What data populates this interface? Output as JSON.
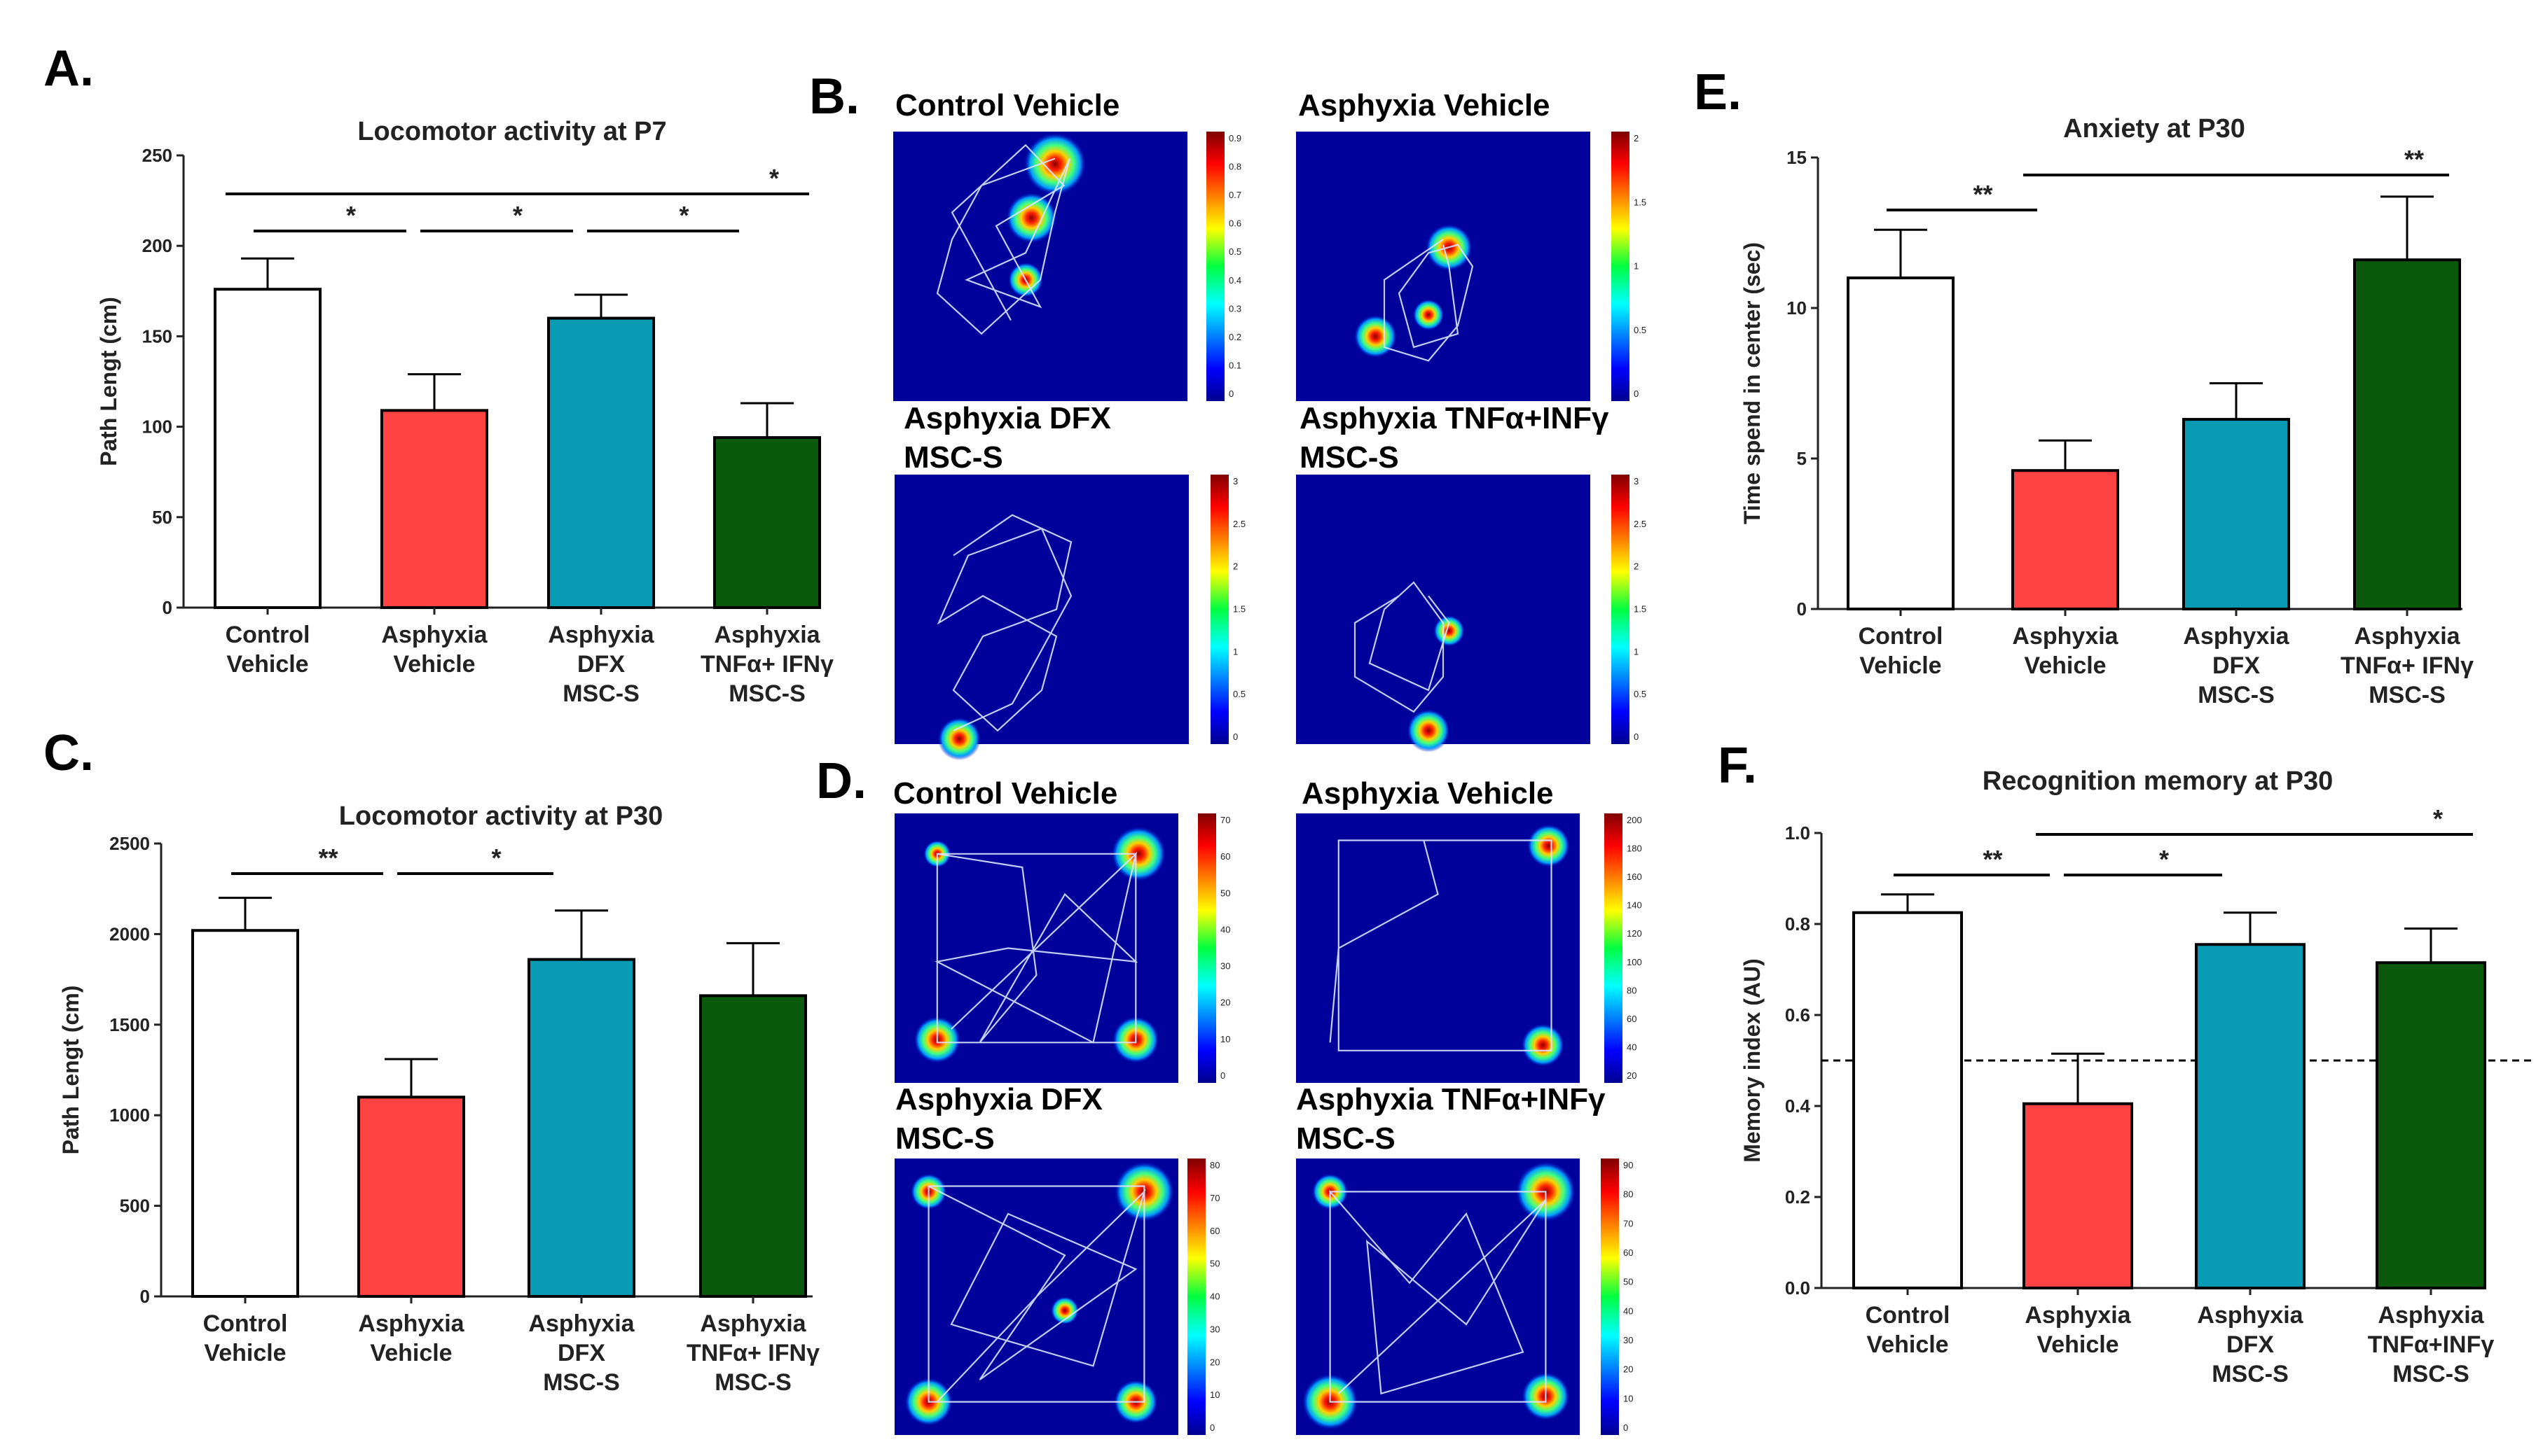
{
  "panel_labels": {
    "A": "A.",
    "B": "B.",
    "C": "C.",
    "D": "D.",
    "E": "E.",
    "F": "F."
  },
  "colors": {
    "control": "#ffffff",
    "asphyxia": "#ff4242",
    "dfx": "#0a9bb4",
    "tnf": "#0b5a0b",
    "axis": "#222222",
    "heat_bg": "#00009a"
  },
  "chart_data": [
    {
      "id": "A",
      "type": "bar",
      "title": "Locomotor activity at P7",
      "ylabel": "Path Lengt (cm)",
      "ylim": [
        0,
        250
      ],
      "yticks": [
        "0",
        "50",
        "100",
        "150",
        "200",
        "250"
      ],
      "categories": [
        [
          "Control",
          "Vehicle"
        ],
        [
          "Asphyxia",
          "Vehicle"
        ],
        [
          "Asphyxia",
          "DFX",
          "MSC-S"
        ],
        [
          "Asphyxia",
          "TNFα+ IFNγ",
          "MSC-S"
        ]
      ],
      "values": [
        176,
        109,
        160,
        94
      ],
      "errors": [
        17,
        20,
        13,
        19
      ],
      "significance": [
        {
          "from": 0,
          "to": 1,
          "label": "*",
          "level": 1
        },
        {
          "from": 1,
          "to": 2,
          "label": "*",
          "level": 1
        },
        {
          "from": 2,
          "to": 3,
          "label": "*",
          "level": 1
        },
        {
          "from": 0,
          "to": 3,
          "label": "*",
          "level": 2
        }
      ]
    },
    {
      "id": "C",
      "type": "bar",
      "title": "Locomotor activity at P30",
      "ylabel": "Path Lengt (cm)",
      "ylim": [
        0,
        2500
      ],
      "yticks": [
        "0",
        "500",
        "1000",
        "1500",
        "2000",
        "2500"
      ],
      "categories": [
        [
          "Control",
          "Vehicle"
        ],
        [
          "Asphyxia",
          "Vehicle"
        ],
        [
          "Asphyxia",
          "DFX",
          "MSC-S"
        ],
        [
          "Asphyxia",
          "TNFα+ IFNγ",
          "MSC-S"
        ]
      ],
      "values": [
        2020,
        1100,
        1860,
        1660
      ],
      "errors": [
        180,
        210,
        270,
        290
      ],
      "significance": [
        {
          "from": 0,
          "to": 1,
          "label": "**",
          "level": 1
        },
        {
          "from": 1,
          "to": 2,
          "label": "*",
          "level": 1
        }
      ]
    },
    {
      "id": "E",
      "type": "bar",
      "title": "Anxiety at P30",
      "ylabel": "Time spend in center (sec)",
      "ylim": [
        0,
        15
      ],
      "yticks": [
        "0",
        "5",
        "10",
        "15"
      ],
      "categories": [
        [
          "Control",
          "Vehicle"
        ],
        [
          "Asphyxia",
          "Vehicle"
        ],
        [
          "Asphyxia",
          "DFX",
          "MSC-S"
        ],
        [
          "Asphyxia",
          "TNFα+ IFNγ",
          "MSC-S"
        ]
      ],
      "values": [
        11.0,
        4.6,
        6.3,
        11.6
      ],
      "errors": [
        1.6,
        1.0,
        1.2,
        2.1
      ],
      "significance": [
        {
          "from": 0,
          "to": 1,
          "label": "**",
          "level": 1
        },
        {
          "from": 1,
          "to": 3,
          "label": "**",
          "level": 2
        }
      ]
    },
    {
      "id": "F",
      "type": "bar",
      "title": "Recognition memory at P30",
      "ylabel": "Memory index (AU)",
      "ylim": [
        0,
        1.0
      ],
      "yticks": [
        "0.0",
        "0.2",
        "0.4",
        "0.6",
        "0.8",
        "1.0"
      ],
      "categories": [
        [
          "Control",
          "Vehicle"
        ],
        [
          "Asphyxia",
          "Vehicle"
        ],
        [
          "Asphyxia",
          "DFX",
          "MSC-S"
        ],
        [
          "Asphyxia",
          "TNFα+INFγ",
          "MSC-S"
        ]
      ],
      "values": [
        0.825,
        0.405,
        0.755,
        0.715
      ],
      "errors": [
        0.04,
        0.11,
        0.07,
        0.075
      ],
      "reference_line": 0.5,
      "significance": [
        {
          "from": 0,
          "to": 1,
          "label": "**",
          "level": 1
        },
        {
          "from": 1,
          "to": 2,
          "label": "*",
          "level": 1
        },
        {
          "from": 1,
          "to": 3,
          "label": "*",
          "level": 2
        }
      ]
    }
  ],
  "heatmaps": {
    "B": [
      {
        "title": [
          "Control Vehicle"
        ],
        "colorbar": [
          "0.9",
          "0.8",
          "0.7",
          "0.6",
          "0.5",
          "0.4",
          "0.3",
          "0.2",
          "0.1",
          "0"
        ]
      },
      {
        "title": [
          "Asphyxia Vehicle"
        ],
        "colorbar": [
          "2",
          "1.5",
          "1",
          "0.5",
          "0"
        ]
      },
      {
        "title": [
          "Asphyxia DFX",
          "MSC-S"
        ],
        "colorbar": [
          "3",
          "2.5",
          "2",
          "1.5",
          "1",
          "0.5",
          "0"
        ]
      },
      {
        "title": [
          "Asphyxia TNFα+INFγ",
          "MSC-S"
        ],
        "colorbar": [
          "3",
          "2.5",
          "2",
          "1.5",
          "1",
          "0.5",
          "0"
        ]
      }
    ],
    "D": [
      {
        "title": [
          "Control Vehicle"
        ],
        "colorbar": [
          "70",
          "60",
          "50",
          "40",
          "30",
          "20",
          "10",
          "0"
        ]
      },
      {
        "title": [
          "Asphyxia Vehicle"
        ],
        "colorbar": [
          "200",
          "180",
          "160",
          "140",
          "120",
          "100",
          "80",
          "60",
          "40",
          "20"
        ]
      },
      {
        "title": [
          "Asphyxia DFX",
          "MSC-S"
        ],
        "colorbar": [
          "80",
          "70",
          "60",
          "50",
          "40",
          "30",
          "20",
          "10",
          "0"
        ]
      },
      {
        "title": [
          "Asphyxia TNFα+INFγ",
          "MSC-S"
        ],
        "colorbar": [
          "90",
          "80",
          "70",
          "60",
          "50",
          "40",
          "30",
          "20",
          "10",
          "0"
        ]
      }
    ]
  }
}
